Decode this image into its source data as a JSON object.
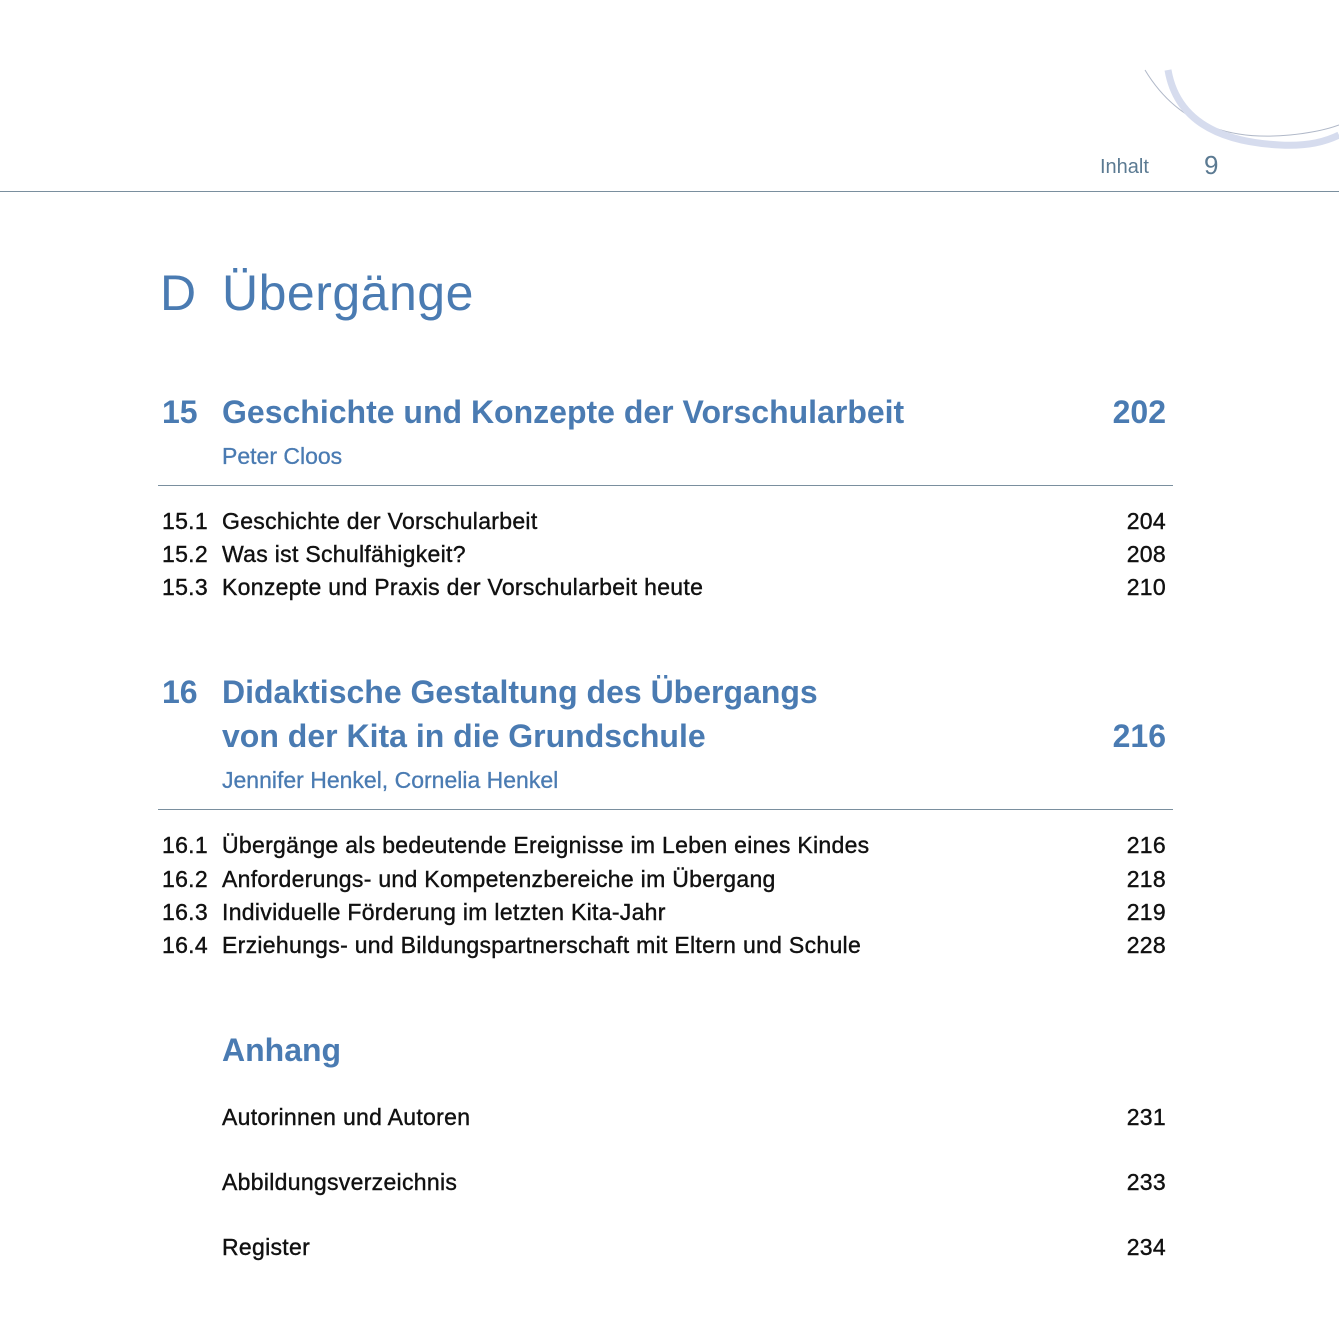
{
  "header": {
    "section": "Inhalt",
    "page_number": "9"
  },
  "part": {
    "letter": "D",
    "title": "Übergänge"
  },
  "chapters": [
    {
      "number": "15",
      "title_lines": [
        "Geschichte und Konzepte der Vorschularbeit"
      ],
      "page": "202",
      "authors": "Peter Cloos",
      "sections": [
        {
          "number": "15.1",
          "title": "Geschichte der Vorschularbeit",
          "page": "204"
        },
        {
          "number": "15.2",
          "title": "Was ist Schulfähigkeit?",
          "page": "208"
        },
        {
          "number": "15.3",
          "title": "Konzepte und Praxis der Vorschularbeit heute",
          "page": "210"
        }
      ]
    },
    {
      "number": "16",
      "title_lines": [
        "Didaktische Gestaltung des Übergangs",
        "von der Kita in die Grundschule"
      ],
      "page": "216",
      "authors": "Jennifer Henkel, Cornelia Henkel",
      "sections": [
        {
          "number": "16.1",
          "title": "Übergänge als bedeutende Ereignisse im Leben eines Kindes",
          "page": "216"
        },
        {
          "number": "16.2",
          "title": "Anforderungs- und Kompetenzbereiche im Übergang",
          "page": "218"
        },
        {
          "number": "16.3",
          "title": "Individuelle Förderung im letzten Kita-Jahr",
          "page": "219"
        },
        {
          "number": "16.4",
          "title": "Erziehungs- und Bildungspartnerschaft mit Eltern und Schule",
          "page": "228"
        }
      ]
    }
  ],
  "appendix": {
    "title": "Anhang",
    "items": [
      {
        "title": "Autorinnen und Autoren",
        "page": "231"
      },
      {
        "title": "Abbildungsverzeichnis",
        "page": "233"
      },
      {
        "title": "Register",
        "page": "234"
      }
    ]
  },
  "colors": {
    "accent": "#4a7bb2",
    "rule": "#7a8f9e"
  }
}
